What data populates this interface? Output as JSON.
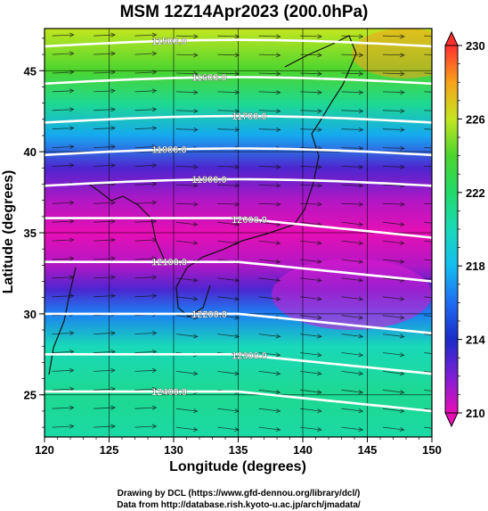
{
  "chart_data": {
    "type": "heatmap",
    "title": "MSM 12Z14Apr2023 (200.0hPa)",
    "xlabel": "Longitude (degrees)",
    "ylabel": "Latitude  (degrees)",
    "xlim": [
      120,
      150
    ],
    "ylim": [
      22.4,
      47.6
    ],
    "xticks": [
      "120",
      "125",
      "130",
      "135",
      "140",
      "145",
      "150"
    ],
    "yticks": [
      "25",
      "30",
      "35",
      "40",
      "45"
    ],
    "colorbar": {
      "min": 210,
      "max": 230,
      "ticks": [
        "210",
        "214",
        "218",
        "222",
        "226",
        "230"
      ],
      "extend": "both"
    },
    "field_anchors_lat_value": [
      [
        22.4,
        220.5
      ],
      [
        25,
        221
      ],
      [
        28,
        220
      ],
      [
        30,
        216.5
      ],
      [
        31.5,
        213
      ],
      [
        33,
        211
      ],
      [
        35,
        210
      ],
      [
        37,
        211
      ],
      [
        39,
        213
      ],
      [
        41,
        217.5
      ],
      [
        43,
        221
      ],
      [
        45,
        224
      ],
      [
        47.6,
        226
      ]
    ],
    "contours": [
      {
        "label": "11500.0",
        "lat": 46.5
      },
      {
        "label": "11600.0",
        "lat": 44.2
      },
      {
        "label": "11700.0",
        "lat": 41.8
      },
      {
        "label": "11800.0",
        "lat": 39.8
      },
      {
        "label": "11900.0",
        "lat": 37.9
      },
      {
        "label": "12000.0",
        "lat": 35.9
      },
      {
        "label": "12100.0",
        "lat": 33.2
      },
      {
        "label": "12200.0",
        "lat": 30.0
      },
      {
        "label": "12300.0",
        "lat": 27.5
      },
      {
        "label": "12400.0",
        "lat": 25.2
      }
    ],
    "wind": "westerly vectors throughout the domain",
    "grid": true
  },
  "credits": {
    "line1": "Drawing by DCL (https://www.gfd-dennou.org/library/dcl/)",
    "line2": "Data from http://database.rish.kyoto-u.ac.jp/arch/jmadata/"
  }
}
